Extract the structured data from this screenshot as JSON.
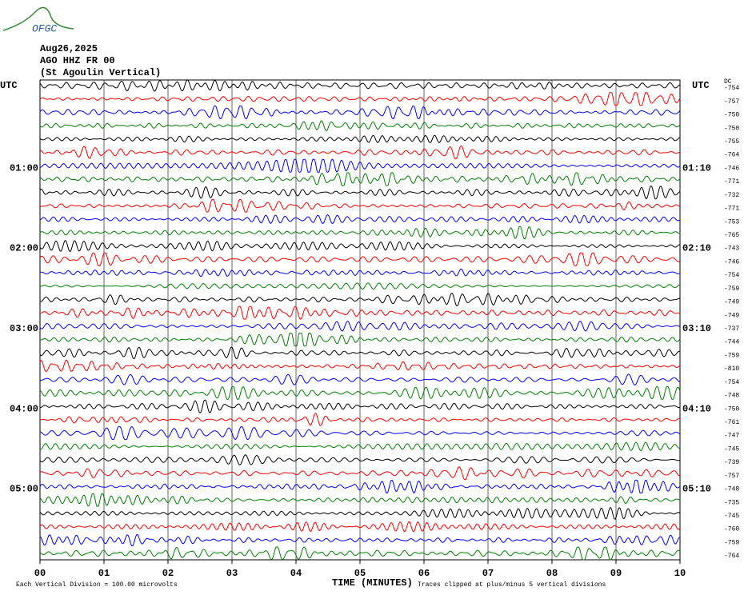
{
  "chart_data": {
    "type": "helicorder",
    "logo": "OFGC",
    "date": "Aug26,2025",
    "station": "AGO HHZ FR 00",
    "location": "(St Agoulin Vertical)",
    "utc_left": "UTC",
    "utc_right": "UTC",
    "dc_header": "DC",
    "xlabel": "TIME (MINUTES)",
    "scale_note": "Each Vertical Division =  100.00 microvolts",
    "clip_note": "Traces clipped at plus/minus 5 vertical divisions",
    "xlim": [
      0,
      10
    ],
    "xticks": [
      {
        "value": 0,
        "label": "00"
      },
      {
        "value": 1,
        "label": "01"
      },
      {
        "value": 2,
        "label": "02"
      },
      {
        "value": 3,
        "label": "03"
      },
      {
        "value": 4,
        "label": "04"
      },
      {
        "value": 5,
        "label": "05"
      },
      {
        "value": 6,
        "label": "06"
      },
      {
        "value": 7,
        "label": "07"
      },
      {
        "value": 8,
        "label": "08"
      },
      {
        "value": 9,
        "label": "09"
      },
      {
        "value": 10,
        "label": "10"
      }
    ],
    "grid": true,
    "colors": [
      "#000000",
      "#ff0000",
      "#0000ff",
      "#007f00"
    ],
    "left_labels": [
      null,
      null,
      null,
      null,
      null,
      null,
      "01:00",
      null,
      null,
      null,
      null,
      null,
      "02:00",
      null,
      null,
      null,
      null,
      null,
      "03:00",
      null,
      null,
      null,
      null,
      null,
      "04:00",
      null,
      null,
      null,
      null,
      null,
      "05:00",
      null,
      null,
      null,
      null,
      null
    ],
    "right_labels": [
      null,
      null,
      null,
      null,
      null,
      null,
      "01:10",
      null,
      null,
      null,
      null,
      null,
      "02:10",
      null,
      null,
      null,
      null,
      null,
      "03:10",
      null,
      null,
      null,
      null,
      null,
      "04:10",
      null,
      null,
      null,
      null,
      null,
      "05:10",
      null,
      null,
      null,
      null,
      null
    ],
    "dc_offsets": [
      -754,
      -757,
      -750,
      -750,
      -755,
      -764,
      -746,
      -771,
      -732,
      -771,
      -753,
      -765,
      -743,
      -746,
      -754,
      -759,
      -749,
      -749,
      -737,
      -744,
      -759,
      -810,
      -754,
      -748,
      -750,
      -761,
      -747,
      -745,
      -739,
      -757,
      -748,
      -735,
      -745,
      -760,
      -759,
      -764
    ]
  }
}
